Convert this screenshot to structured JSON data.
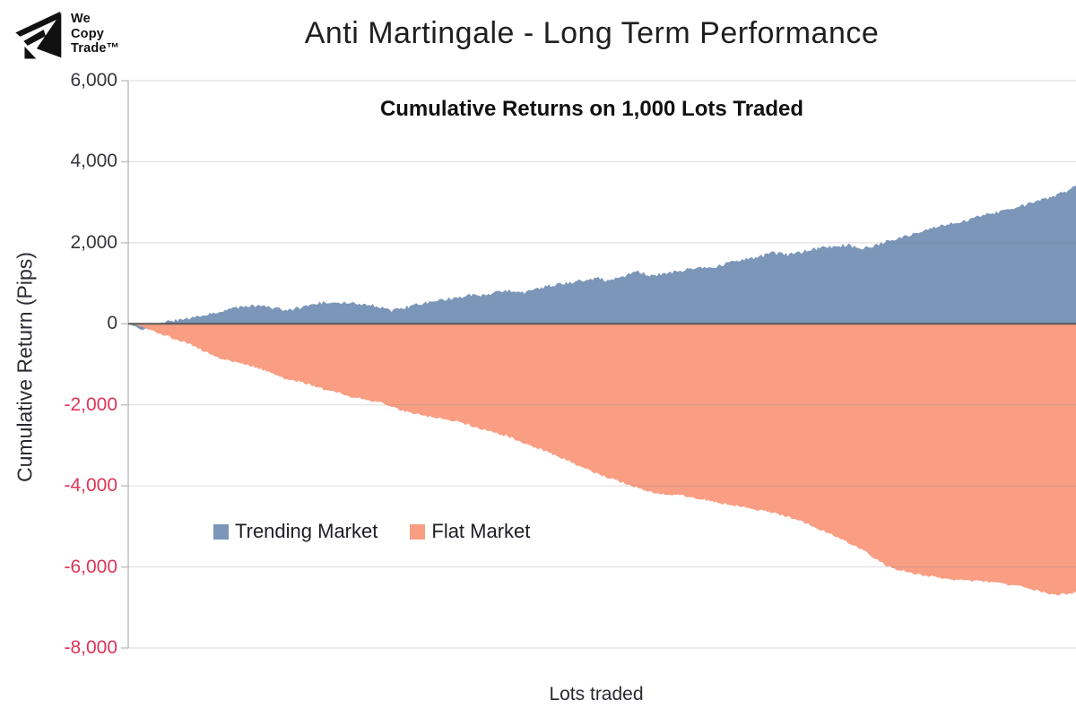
{
  "logo": {
    "line1": "We",
    "line2": "Copy",
    "line3": "Trade™"
  },
  "header": {
    "title": "Anti Martingale - Long Term Performance"
  },
  "chart_data": {
    "type": "area",
    "title": "Cumulative Returns on 1,000 Lots Traded",
    "xlabel": "Lots traded",
    "ylabel": "Cumulative Return (Pips)",
    "xlim": [
      0,
      1000
    ],
    "ylim": [
      -8000,
      6000
    ],
    "grid": true,
    "legend_position": "bottom-left-inside",
    "positive_tick_color": "#35353d",
    "negative_tick_color": "#e03355",
    "zero_line_color": "#595959",
    "axis_color": "#c2c2c2",
    "yticks": [
      {
        "value": 6000,
        "label": "6,000"
      },
      {
        "value": 4000,
        "label": "4,000"
      },
      {
        "value": 2000,
        "label": "2,000"
      },
      {
        "value": 0,
        "label": "0"
      },
      {
        "value": -2000,
        "label": "-2,000"
      },
      {
        "value": -4000,
        "label": "-4,000"
      },
      {
        "value": -6000,
        "label": "-6,000"
      },
      {
        "value": -8000,
        "label": "-8,000"
      }
    ],
    "series": [
      {
        "name": "Trending Market",
        "color": "#7b96b8",
        "noise": 45,
        "x": [
          0,
          7,
          14,
          24,
          33,
          63,
          87,
          113,
          139,
          160,
          177,
          198,
          219,
          238,
          262,
          279,
          292,
          309,
          333,
          357,
          380,
          399,
          418,
          442,
          470,
          494,
          508,
          527,
          538,
          551,
          570,
          593,
          617,
          640,
          664,
          680,
          697,
          716,
          740,
          759,
          771,
          782,
          797,
          815,
          839,
          863,
          886,
          910,
          934,
          957,
          976,
          1000
        ],
        "values": [
          0,
          -60,
          -150,
          -80,
          20,
          130,
          240,
          380,
          470,
          350,
          380,
          510,
          550,
          490,
          440,
          330,
          400,
          510,
          600,
          690,
          730,
          820,
          770,
          930,
          1040,
          1130,
          1060,
          1200,
          1280,
          1200,
          1260,
          1350,
          1390,
          1530,
          1640,
          1750,
          1700,
          1810,
          1900,
          1950,
          1840,
          1900,
          2010,
          2120,
          2280,
          2450,
          2570,
          2720,
          2850,
          3010,
          3140,
          3380
        ]
      },
      {
        "name": "Flat Market",
        "color": "#f99e83",
        "noise": 30,
        "x": [
          0,
          10,
          21,
          44,
          68,
          92,
          115,
          139,
          163,
          186,
          210,
          234,
          262,
          290,
          319,
          347,
          376,
          404,
          432,
          461,
          489,
          522,
          555,
          584,
          612,
          645,
          678,
          707,
          740,
          773,
          801,
          830,
          868,
          905,
          943,
          976,
          1000
        ],
        "values": [
          0,
          -40,
          -130,
          -330,
          -530,
          -820,
          -950,
          -1110,
          -1330,
          -1460,
          -1640,
          -1790,
          -1920,
          -2150,
          -2300,
          -2410,
          -2610,
          -2810,
          -3070,
          -3340,
          -3650,
          -3920,
          -4180,
          -4230,
          -4360,
          -4510,
          -4650,
          -4840,
          -5180,
          -5550,
          -5990,
          -6170,
          -6300,
          -6370,
          -6480,
          -6700,
          -6640
        ]
      }
    ]
  }
}
